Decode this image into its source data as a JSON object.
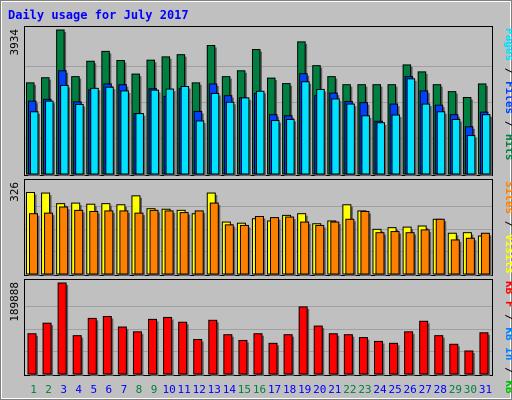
{
  "chart_data": {
    "type": "bar",
    "title": "Daily usage for July 2017",
    "colors": {
      "background": "#c0c0c0",
      "frame": "#ffffff",
      "title": "#0000ff",
      "hits": "#008040",
      "files": "#0040ff",
      "pages": "#00e0ff",
      "visits": "#ffff00",
      "sites": "#ff8000",
      "kbF": "#ff0000",
      "kbIn": "#0080ff",
      "kbOut": "#00c000",
      "weekday_tick": "#0000ff",
      "weekend_tick": "#008040"
    },
    "categories": [
      "1",
      "2",
      "3",
      "4",
      "5",
      "6",
      "7",
      "8",
      "9",
      "10",
      "11",
      "12",
      "13",
      "14",
      "15",
      "16",
      "17",
      "18",
      "19",
      "20",
      "21",
      "22",
      "23",
      "24",
      "25",
      "26",
      "27",
      "28",
      "29",
      "30",
      "31"
    ],
    "weekend_days": [
      "1",
      "2",
      "8",
      "9",
      "15",
      "16",
      "22",
      "23",
      "29",
      "30"
    ],
    "panels": [
      {
        "id": "hits",
        "ymax_label": "3934",
        "ymax": 3934,
        "side_labels": [
          {
            "text": "Pages",
            "color": "#00e0ff"
          },
          {
            "text": " / ",
            "color": "#000000"
          },
          {
            "text": "Files",
            "color": "#0040ff"
          },
          {
            "text": " / ",
            "color": "#000000"
          },
          {
            "text": "Hits",
            "color": "#008040"
          }
        ],
        "series": [
          {
            "name": "Hits",
            "values": [
              2490,
              2630,
              3934,
              2660,
              3080,
              3350,
              3100,
              2730,
              3110,
              3200,
              3260,
              2490,
              3510,
              2660,
              2820,
              3400,
              2620,
              2470,
              3610,
              2960,
              2660,
              2440,
              2440,
              2440,
              2440,
              2980,
              2790,
              2440,
              2250,
              2090,
              2460
            ]
          },
          {
            "name": "Files",
            "values": [
              1990,
              2040,
              2820,
              1970,
              2300,
              2460,
              2440,
              1650,
              2330,
              2120,
              2330,
              1710,
              2460,
              2140,
              2080,
              2200,
              1620,
              1590,
              2740,
              2140,
              2210,
              1980,
              1950,
              1440,
              1910,
              2660,
              2270,
              1880,
              1620,
              1290,
              1690
            ]
          },
          {
            "name": "Pages",
            "values": [
              1700,
              1990,
              2420,
              1900,
              2340,
              2370,
              2270,
              1650,
              2290,
              2320,
              2390,
              1450,
              2200,
              1960,
              2080,
              2260,
              1460,
              1490,
              2520,
              2310,
              2050,
              1910,
              1590,
              1400,
              1610,
              2600,
              1910,
              1700,
              1490,
              1050,
              1620
            ]
          }
        ]
      },
      {
        "id": "visits",
        "ymax_label": "326",
        "ymax": 326,
        "side_labels": [
          {
            "text": "Sites",
            "color": "#ff8000"
          },
          {
            "text": " / ",
            "color": "#000000"
          },
          {
            "text": "Visits",
            "color": "#ffff00"
          }
        ],
        "series": [
          {
            "name": "Visits",
            "values": [
              292,
              290,
              252,
              254,
              250,
              252,
              248,
              280,
              234,
              232,
              228,
              216,
              290,
              186,
              182,
              198,
              190,
              210,
              216,
              180,
              190,
              248,
              226,
              160,
              166,
              168,
              172,
              196,
              146,
              148,
              136
            ]
          },
          {
            "name": "Sites",
            "values": [
              216,
              218,
              240,
              228,
              224,
              226,
              226,
              218,
              228,
              226,
              220,
              226,
              254,
              176,
              174,
              206,
              202,
              204,
              186,
              174,
              186,
              196,
              224,
              148,
              152,
              148,
              158,
              196,
              122,
              128,
              146
            ]
          }
        ]
      },
      {
        "id": "kbytes",
        "ymax_label": "189888",
        "ymax": 189888,
        "side_labels": [
          {
            "text": "KB F",
            "color": "#ff0000"
          },
          {
            "text": " / ",
            "color": "#000000"
          },
          {
            "text": "KB In",
            "color": "#0080ff"
          },
          {
            "text": " / ",
            "color": "#000000"
          },
          {
            "text": "KB Out",
            "color": "#00c000"
          }
        ],
        "series": [
          {
            "name": "KB F",
            "values": [
              84000,
              106000,
              189888,
              80000,
              116000,
              120000,
              98000,
              88000,
              114000,
              118000,
              108000,
              72000,
              112000,
              82000,
              70000,
              84000,
              64000,
              82000,
              140000,
              100000,
              84000,
              82000,
              76000,
              68000,
              64000,
              88000,
              110000,
              80000,
              62000,
              48000,
              86000
            ]
          }
        ]
      }
    ]
  }
}
